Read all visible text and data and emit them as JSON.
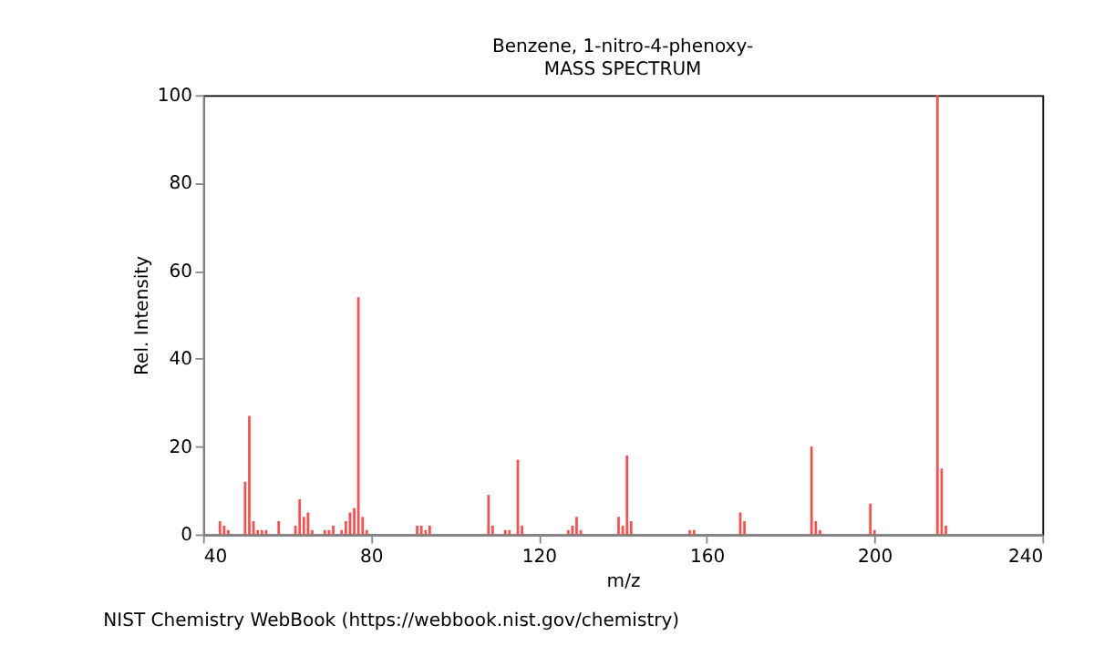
{
  "chart_data": {
    "type": "bar",
    "title": "Benzene, 1-nitro-4-phenoxy-",
    "subtitle": "MASS SPECTRUM",
    "xlabel": "m/z",
    "ylabel": "Rel. Intensity",
    "x": [
      44,
      45,
      46,
      50,
      51,
      52,
      53,
      54,
      55,
      58,
      62,
      63,
      64,
      65,
      66,
      69,
      70,
      71,
      73,
      74,
      75,
      76,
      77,
      78,
      79,
      91,
      92,
      93,
      94,
      108,
      109,
      112,
      113,
      115,
      116,
      127,
      128,
      129,
      130,
      139,
      140,
      141,
      142,
      156,
      157,
      168,
      169,
      185,
      186,
      187,
      199,
      200,
      215,
      216,
      217
    ],
    "values": [
      3,
      2,
      1,
      12,
      27,
      3,
      1,
      1,
      1,
      3,
      2,
      8,
      4,
      5,
      1,
      1,
      1,
      2,
      1,
      3,
      5,
      6,
      54,
      4,
      1,
      2,
      2,
      1,
      2,
      9,
      2,
      1,
      1,
      17,
      2,
      1,
      2,
      4,
      1,
      4,
      2,
      18,
      3,
      1,
      1,
      5,
      3,
      20,
      3,
      1,
      7,
      1,
      100,
      15,
      2
    ],
    "color": "#ff4c4c",
    "xlim": [
      40,
      240
    ],
    "xticks": [
      40,
      80,
      120,
      160,
      200,
      240
    ],
    "ylim": [
      0,
      100
    ],
    "yticks": [
      0,
      20,
      40,
      60,
      80,
      100
    ],
    "grid": false,
    "annotations": [
      "NIST Chemistry WebBook (https://webbook.nist.gov/chemistry)"
    ]
  }
}
